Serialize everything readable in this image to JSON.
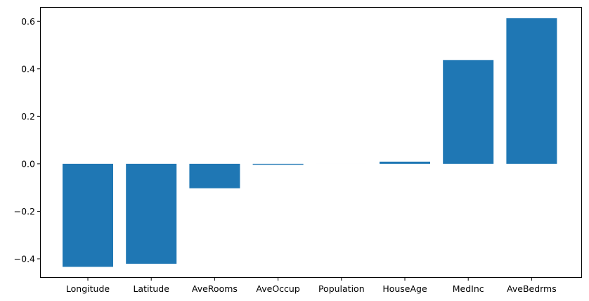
{
  "chart_data": {
    "type": "bar",
    "title": "",
    "xlabel": "",
    "ylabel": "",
    "categories": [
      "Longitude",
      "Latitude",
      "AveRooms",
      "AveOccup",
      "Population",
      "HouseAge",
      "MedInc",
      "AveBedrms"
    ],
    "values": [
      -0.434,
      -0.421,
      -0.103,
      -0.004,
      -1e-05,
      0.009,
      0.437,
      0.613
    ],
    "ylim": [
      -0.48,
      0.66
    ],
    "yticks": [
      -0.4,
      -0.2,
      0.0,
      0.2,
      0.4,
      0.6
    ],
    "ytick_labels": [
      "−0.4",
      "−0.2",
      "0.0",
      "0.2",
      "0.4",
      "0.6"
    ],
    "grid": false,
    "bar_color": "#1f77b4"
  }
}
